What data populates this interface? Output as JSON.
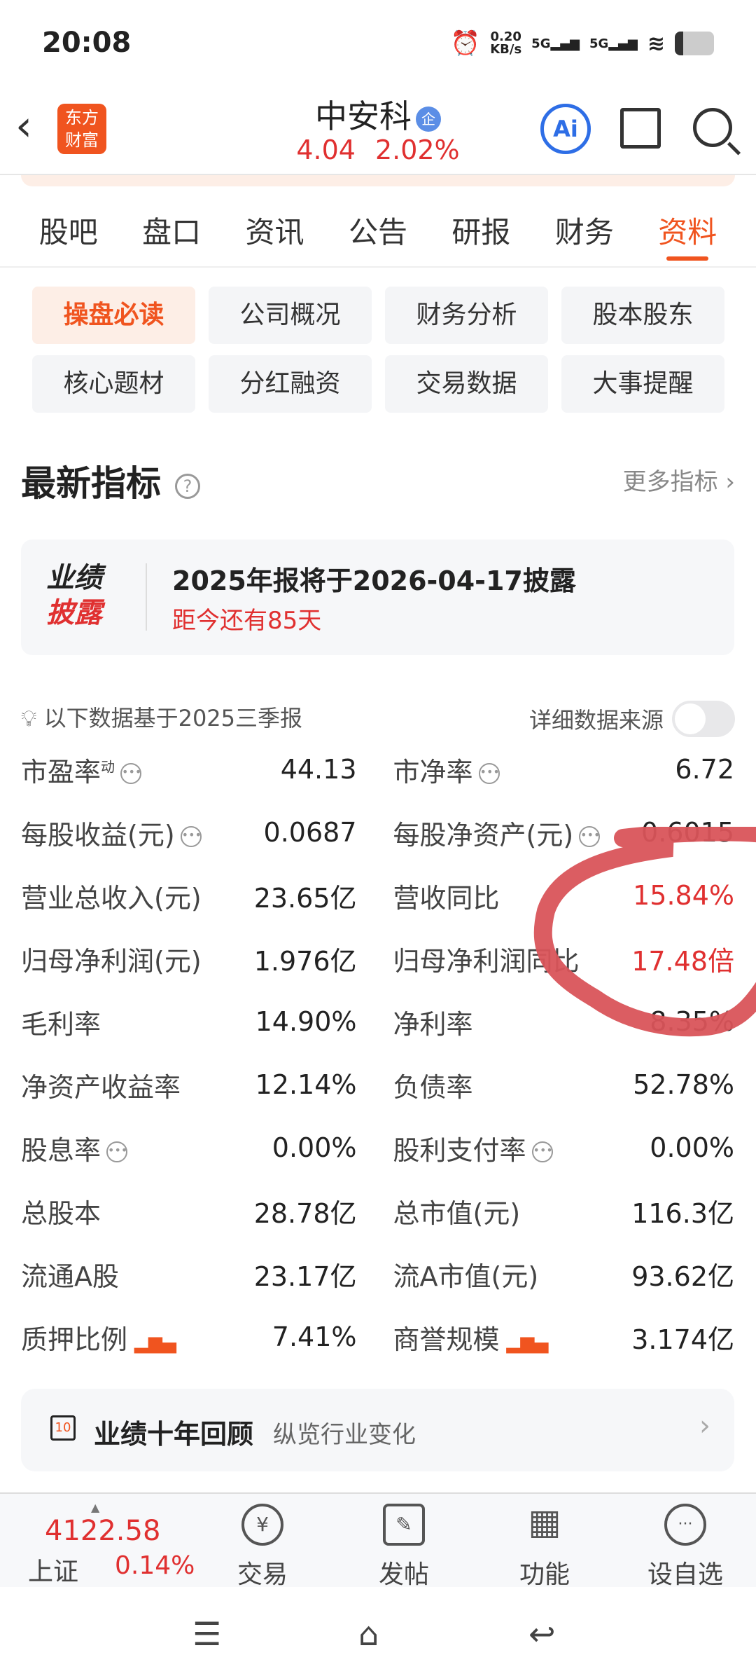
{
  "status_bar": {
    "time": "20:08",
    "net_speed": "0.20",
    "net_unit": "KB/s",
    "sim1": "5G",
    "sim2": "5G"
  },
  "header": {
    "logo": "东方财富",
    "stock_name": "中安科",
    "badge": "企",
    "price": "4.04",
    "change": "2.02%",
    "ai_label": "Ai"
  },
  "tabs": [
    {
      "label": "股吧"
    },
    {
      "label": "盘口"
    },
    {
      "label": "资讯"
    },
    {
      "label": "公告"
    },
    {
      "label": "研报"
    },
    {
      "label": "财务"
    },
    {
      "label": "资料",
      "active": true
    }
  ],
  "sub_tabs": [
    {
      "label": "操盘必读",
      "active": true
    },
    {
      "label": "公司概况"
    },
    {
      "label": "财务分析"
    },
    {
      "label": "股本股东"
    },
    {
      "label": "核心题材"
    },
    {
      "label": "分红融资"
    },
    {
      "label": "交易数据"
    },
    {
      "label": "大事提醒"
    }
  ],
  "section": {
    "title": "最新指标",
    "help": "?",
    "more": "更多指标 ›"
  },
  "disclosure": {
    "badge_line1": "业绩",
    "badge_line2": "披露",
    "title": "2025年报将于2026-04-17披露",
    "countdown": "距今还有85天"
  },
  "data_note": {
    "text": "以下数据基于2025三季报",
    "source_label": "详细数据来源",
    "source_toggle": false
  },
  "metrics": [
    [
      {
        "label": "市盈率",
        "sup": "动",
        "info": true,
        "value": "44.13"
      },
      {
        "label": "市净率",
        "info": true,
        "value": "6.72"
      }
    ],
    [
      {
        "label": "每股收益(元)",
        "info": true,
        "value": "0.0687"
      },
      {
        "label": "每股净资产(元)",
        "info": true,
        "value": "0.6015"
      }
    ],
    [
      {
        "label": "营业总收入(元)",
        "value": "23.65亿"
      },
      {
        "label": "营收同比",
        "value": "15.84%",
        "red": true
      }
    ],
    [
      {
        "label": "归母净利润(元)",
        "value": "1.976亿"
      },
      {
        "label": "归母净利润同比",
        "value": "17.48倍",
        "red": true
      }
    ],
    [
      {
        "label": "毛利率",
        "value": "14.90%"
      },
      {
        "label": "净利率",
        "value": "8.35%"
      }
    ],
    [
      {
        "label": "净资产收益率",
        "value": "12.14%"
      },
      {
        "label": "负债率",
        "value": "52.78%"
      }
    ],
    [
      {
        "label": "股息率",
        "info": true,
        "value": "0.00%"
      },
      {
        "label": "股利支付率",
        "info": true,
        "value": "0.00%"
      }
    ],
    [
      {
        "label": "总股本",
        "value": "28.78亿"
      },
      {
        "label": "总市值(元)",
        "value": "116.3亿"
      }
    ],
    [
      {
        "label": "流通A股",
        "value": "23.17亿"
      },
      {
        "label": "流A市值(元)",
        "value": "93.62亿"
      }
    ],
    [
      {
        "label": "质押比例",
        "chart": true,
        "value": "7.41%"
      },
      {
        "label": "商誉规模",
        "chart": true,
        "value": "3.174亿"
      }
    ]
  ],
  "ten_year": {
    "icon": "10",
    "title": "业绩十年回顾",
    "subtitle": "纵览行业变化"
  },
  "bottom_bar": {
    "index_value": "4122.58",
    "index_name": "上证",
    "index_change": "0.14%",
    "items": [
      {
        "label": "交易",
        "icon": "¥"
      },
      {
        "label": "发帖",
        "icon": "✎"
      },
      {
        "label": "功能",
        "icon": "▦"
      },
      {
        "label": "设自选",
        "icon": "···"
      }
    ]
  },
  "colors": {
    "accent": "#f0541f",
    "up": "#e03030",
    "ai_blue": "#2e6ee6",
    "annotation": "#d9545a"
  }
}
